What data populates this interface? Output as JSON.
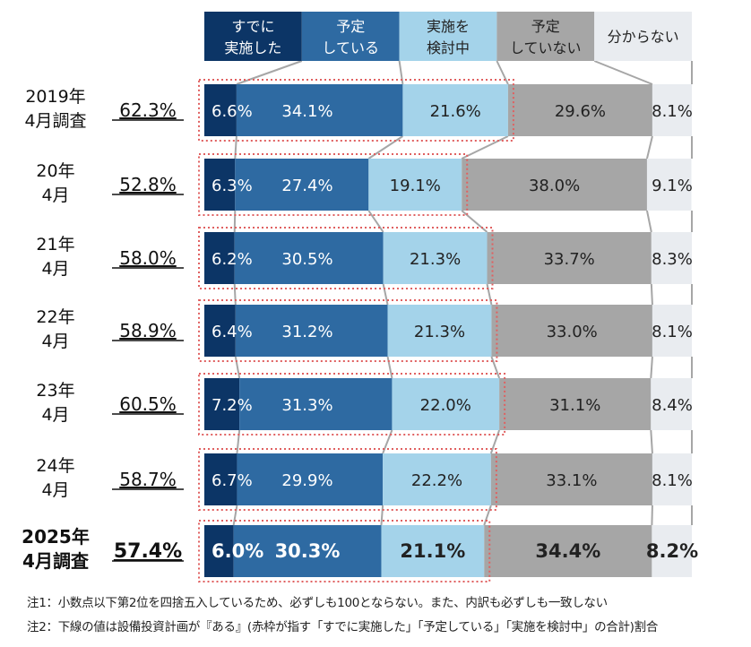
{
  "chart_data": {
    "type": "bar",
    "orientation": "horizontal",
    "stacked": true,
    "xlim": [
      0,
      100
    ],
    "legend": {
      "placement": "top",
      "entries": [
        {
          "lines": [
            "すでに",
            "実施した"
          ],
          "color": "#0c3566",
          "text_color": "#ffffff"
        },
        {
          "lines": [
            "予定",
            "している"
          ],
          "color": "#2e6aa2",
          "text_color": "#ffffff"
        },
        {
          "lines": [
            "実施を",
            "検討中"
          ],
          "color": "#a4d3ea",
          "text_color": "#222222"
        },
        {
          "lines": [
            "予定",
            "していない"
          ],
          "color": "#a6a6a6",
          "text_color": "#222222"
        },
        {
          "lines": [
            "分からない"
          ],
          "color": "#e9ecf0",
          "text_color": "#222222"
        }
      ]
    },
    "series": [
      {
        "name": "すでに実施した",
        "values": [
          6.6,
          6.3,
          6.2,
          6.4,
          7.2,
          6.7,
          6.0
        ]
      },
      {
        "name": "予定している",
        "values": [
          34.1,
          27.4,
          30.5,
          31.2,
          31.3,
          29.9,
          30.3
        ]
      },
      {
        "name": "実施を検討中",
        "values": [
          21.6,
          19.1,
          21.3,
          21.3,
          22.0,
          22.2,
          21.1
        ]
      },
      {
        "name": "予定していない",
        "values": [
          29.6,
          38.0,
          33.7,
          33.0,
          31.1,
          33.1,
          34.4
        ]
      },
      {
        "name": "分からない",
        "values": [
          8.1,
          9.1,
          8.3,
          8.1,
          8.4,
          8.1,
          8.2
        ]
      }
    ],
    "categories": [
      {
        "lines": [
          "2019年",
          "4月調査"
        ],
        "total": "62.3%"
      },
      {
        "lines": [
          "20年",
          "4月"
        ],
        "total": "52.8%"
      },
      {
        "lines": [
          "21年",
          "4月"
        ],
        "total": "58.0%"
      },
      {
        "lines": [
          "22年",
          "4月"
        ],
        "total": "58.9%"
      },
      {
        "lines": [
          "23年",
          "4月"
        ],
        "total": "60.5%"
      },
      {
        "lines": [
          "24年",
          "4月"
        ],
        "total": "58.7%"
      },
      {
        "lines": [
          "2025年",
          "4月調査"
        ],
        "total": "57.4%",
        "bold": true
      }
    ],
    "highlight_box_color": "#e06060",
    "connector_color": "#a6a6a6"
  },
  "notes": [
    "注1：小数点以下第2位を四捨五入しているため、必ずしも100とならない。また、内訳も必ずしも一致しない",
    "注2：下線の値は設備投資計画が『ある』(赤枠が指す「すでに実施した」「予定している」「実施を検討中」の合計)割合"
  ]
}
